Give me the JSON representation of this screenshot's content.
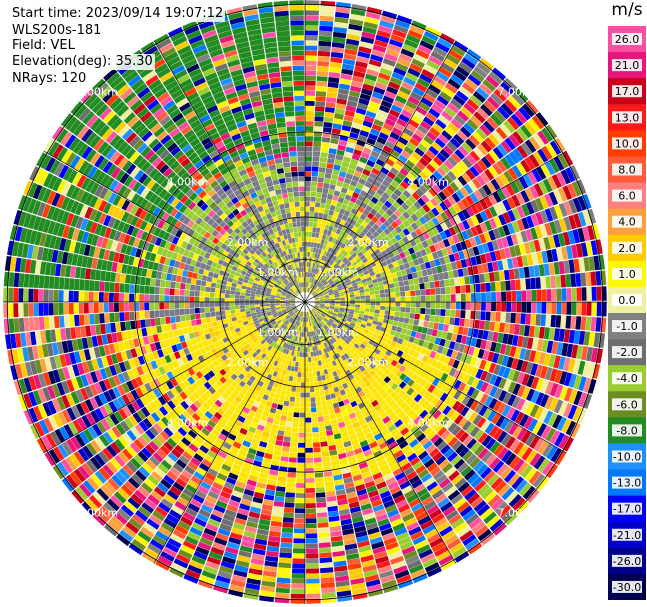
{
  "header": {
    "start_time": "Start time: 2023/09/14 19:07:12",
    "instrument": "WLS200s-181",
    "field": "Field: VEL",
    "elevation": "Elevation(deg): 35.30",
    "nrays": "NRays: 120"
  },
  "chart_data": {
    "type": "heatmap",
    "subtype": "polar-ppi",
    "field": "VEL",
    "n_rays": 120,
    "elevation_deg": 35.3,
    "range_rings_km": [
      1.0,
      2.0,
      4.0,
      7.0
    ],
    "range_labels": [
      "1.00km",
      "2.00km",
      "4.00km",
      "7.00km"
    ],
    "max_range_km": 7.1,
    "colorbar": {
      "unit": "m/s",
      "ticks": [
        "26.0",
        "21.0",
        "17.0",
        "13.0",
        "10.0",
        "8.0",
        "6.0",
        "4.0",
        "2.0",
        "1.0",
        "0.0",
        "-1.0",
        "-2.0",
        "-4.0",
        "-6.0",
        "-8.0",
        "-10.0",
        "-13.0",
        "-17.0",
        "-21.0",
        "-26.0",
        "-30.0"
      ],
      "colors": [
        "#ff4fa3",
        "#e8157a",
        "#c90018",
        "#ff1a1a",
        "#ff3d00",
        "#ff5a3a",
        "#ff7f7f",
        "#ffa040",
        "#ffcc00",
        "#fff700",
        "#f0f0a0",
        "#808080",
        "#6e6e6e",
        "#9acd32",
        "#6b8e23",
        "#228b22",
        "#1e90ff",
        "#0078ff",
        "#0000ff",
        "#0000cd",
        "#00008b",
        "#000050"
      ]
    },
    "colors": {
      "inner_gray": "#7a7a8a",
      "inner_green": "#9acd32",
      "yellow": "#ffe600",
      "dark_green": "#228b22",
      "ring_line": "#000000"
    }
  }
}
